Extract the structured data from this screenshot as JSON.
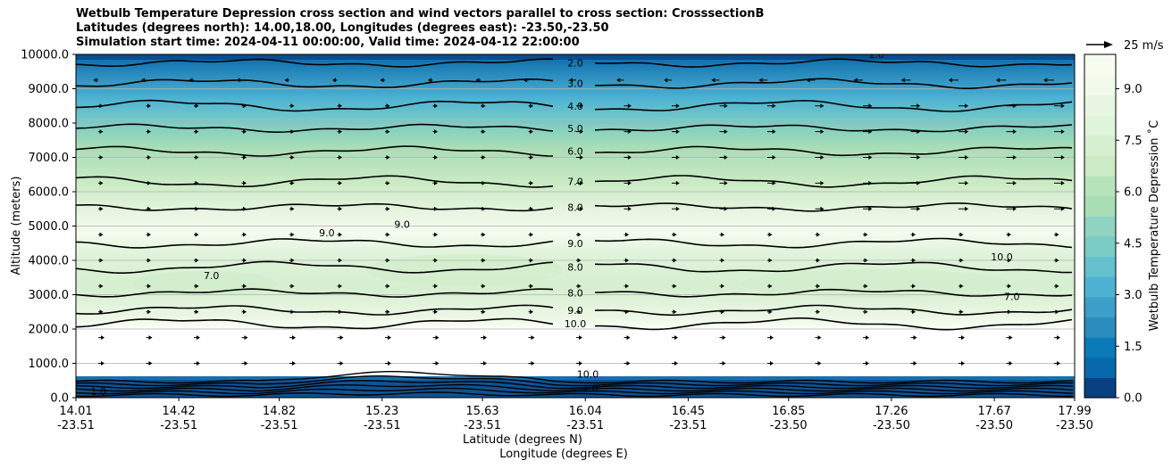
{
  "chart_data": {
    "type": "contour",
    "title_lines": [
      "Wetbulb Temperature Depression cross section and wind vectors parallel to cross section: CrosssectionB",
      "Latitudes (degrees north): 14.00,18.00, Longitudes (degrees east): -23.50,-23.50",
      "Simulation start time: 2024-04-11 00:00:00, Valid time: 2024-04-12 22:00:00"
    ],
    "ylabel": "Altitude (meters)",
    "xlabel_lat": "Latitude (degrees N)",
    "xlabel_lon": "Longitude (degrees E)",
    "ylim": [
      0,
      10000
    ],
    "y_ticks": [
      "0.0",
      "1000.0",
      "2000.0",
      "3000.0",
      "4000.0",
      "5000.0",
      "6000.0",
      "7000.0",
      "8000.0",
      "9000.0",
      "10000.0"
    ],
    "x_ticks_lat": [
      "14.01",
      "14.42",
      "14.82",
      "15.23",
      "15.63",
      "16.04",
      "16.45",
      "16.85",
      "17.26",
      "17.67",
      "17.99"
    ],
    "x_ticks_lon": [
      "-23.51",
      "-23.51",
      "-23.51",
      "-23.51",
      "-23.51",
      "-23.51",
      "-23.51",
      "-23.50",
      "-23.50",
      "-23.50",
      "-23.50"
    ],
    "x_tick_values": [
      14.01,
      14.42,
      14.82,
      15.23,
      15.63,
      16.04,
      16.45,
      16.85,
      17.26,
      17.67,
      17.99
    ],
    "xlim": [
      14.01,
      17.99
    ],
    "colorbar": {
      "label": "Wetbulb Temperature Depression ˚C",
      "ticks": [
        "0.0",
        "1.5",
        "3.0",
        "4.5",
        "6.0",
        "7.5",
        "9.0"
      ],
      "tick_values": [
        0,
        1.5,
        3,
        4.5,
        6,
        7.5,
        9
      ],
      "range": [
        0,
        10
      ],
      "colors": [
        "#084081",
        "#0868ac",
        "#0b7ab8",
        "#2b8cbe",
        "#3b9fc8",
        "#4eb3d3",
        "#64c0cc",
        "#7bccc4",
        "#8fd3c0",
        "#a8ddb5",
        "#b7e3bb",
        "#ccebc5",
        "#d6efd0",
        "#e0f3db",
        "#eaf6e4",
        "#f2faeb",
        "#f7fcf0"
      ]
    },
    "wind_legend": "25 m/s",
    "contour_levels": [
      {
        "level": 2.0,
        "label": "2.0",
        "alt": 9750,
        "label_lat": 16.0
      },
      {
        "level": 3.0,
        "label": "3.0",
        "alt": 9150,
        "label_lat": 16.0
      },
      {
        "level": 4.0,
        "label": "4.0",
        "alt": 8500,
        "label_lat": 16.0
      },
      {
        "level": 5.0,
        "label": "5.0",
        "alt": 7850,
        "label_lat": 16.0
      },
      {
        "level": 6.0,
        "label": "6.0",
        "alt": 7180,
        "label_lat": 16.0
      },
      {
        "level": 7.0,
        "label": "7.0",
        "alt": 6300,
        "label_lat": 16.0
      },
      {
        "level": 8.0,
        "label": "8.0",
        "alt": 5550,
        "label_lat": 16.0
      },
      {
        "level": 9.0,
        "label": "9.0",
        "alt": 4500,
        "label_lat": 16.0
      },
      {
        "level": 8.0,
        "label": "8.0",
        "alt": 3800,
        "label_lat": 16.0
      },
      {
        "level": 8.0,
        "label": "8.0",
        "alt": 3050,
        "label_lat": 16.0
      },
      {
        "level": 9.0,
        "label": "9.0",
        "alt": 2550,
        "label_lat": 16.0
      },
      {
        "level": 10.0,
        "label": "10.0",
        "alt": 2150,
        "label_lat": 16.0
      }
    ],
    "extra_labels": [
      {
        "label": "9.0",
        "lat": 15.01,
        "alt": 4700
      },
      {
        "label": "9.0",
        "lat": 15.31,
        "alt": 4950
      },
      {
        "label": "7.0",
        "lat": 14.55,
        "alt": 3450
      },
      {
        "label": "10.0",
        "lat": 17.7,
        "alt": 4000
      },
      {
        "label": "7.0",
        "lat": 17.74,
        "alt": 2850
      },
      {
        "label": "10.0",
        "lat": 16.05,
        "alt": 580
      },
      {
        "label": "1.0",
        "lat": 16.06,
        "alt": 170
      },
      {
        "label": "1.0",
        "lat": 17.2,
        "alt": 9900
      },
      {
        "label": "1.0",
        "lat": 14.1,
        "alt": 80
      }
    ]
  }
}
